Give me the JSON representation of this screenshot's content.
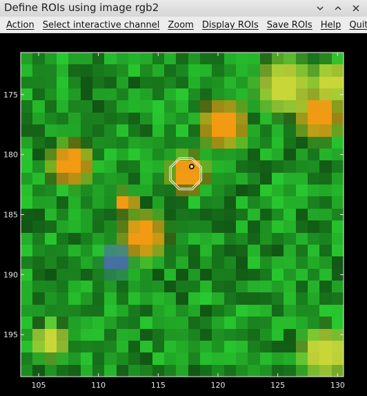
{
  "window": {
    "title": "Define ROIs using image rgb2",
    "controls": [
      "chevron-down-icon",
      "chevron-up-icon",
      "close-icon"
    ]
  },
  "menu": [
    {
      "label": "Action"
    },
    {
      "label": "Select interactive channel"
    },
    {
      "label": "Zoom"
    },
    {
      "label": "Display ROIs"
    },
    {
      "label": "Save ROIs"
    },
    {
      "label": "Help"
    },
    {
      "label": "Quit"
    }
  ],
  "image_view": {
    "x_range": [
      103.5,
      130.5
    ],
    "y_range": [
      171.5,
      198.5
    ],
    "x_ticks": [
      105,
      110,
      115,
      120,
      125,
      130
    ],
    "y_ticks": [
      175,
      180,
      185,
      190,
      195
    ],
    "colors": {
      "green": "#1f9a24",
      "orange": "#f29a12",
      "yellow": "#c8d638",
      "blue": "#4670a0"
    },
    "roi": {
      "center_x": 117.3,
      "center_y": 181.6,
      "radius": 1.45
    },
    "cursor": {
      "x": 117.8,
      "y": 181.0,
      "icon": "crosshair-ring-icon"
    }
  }
}
